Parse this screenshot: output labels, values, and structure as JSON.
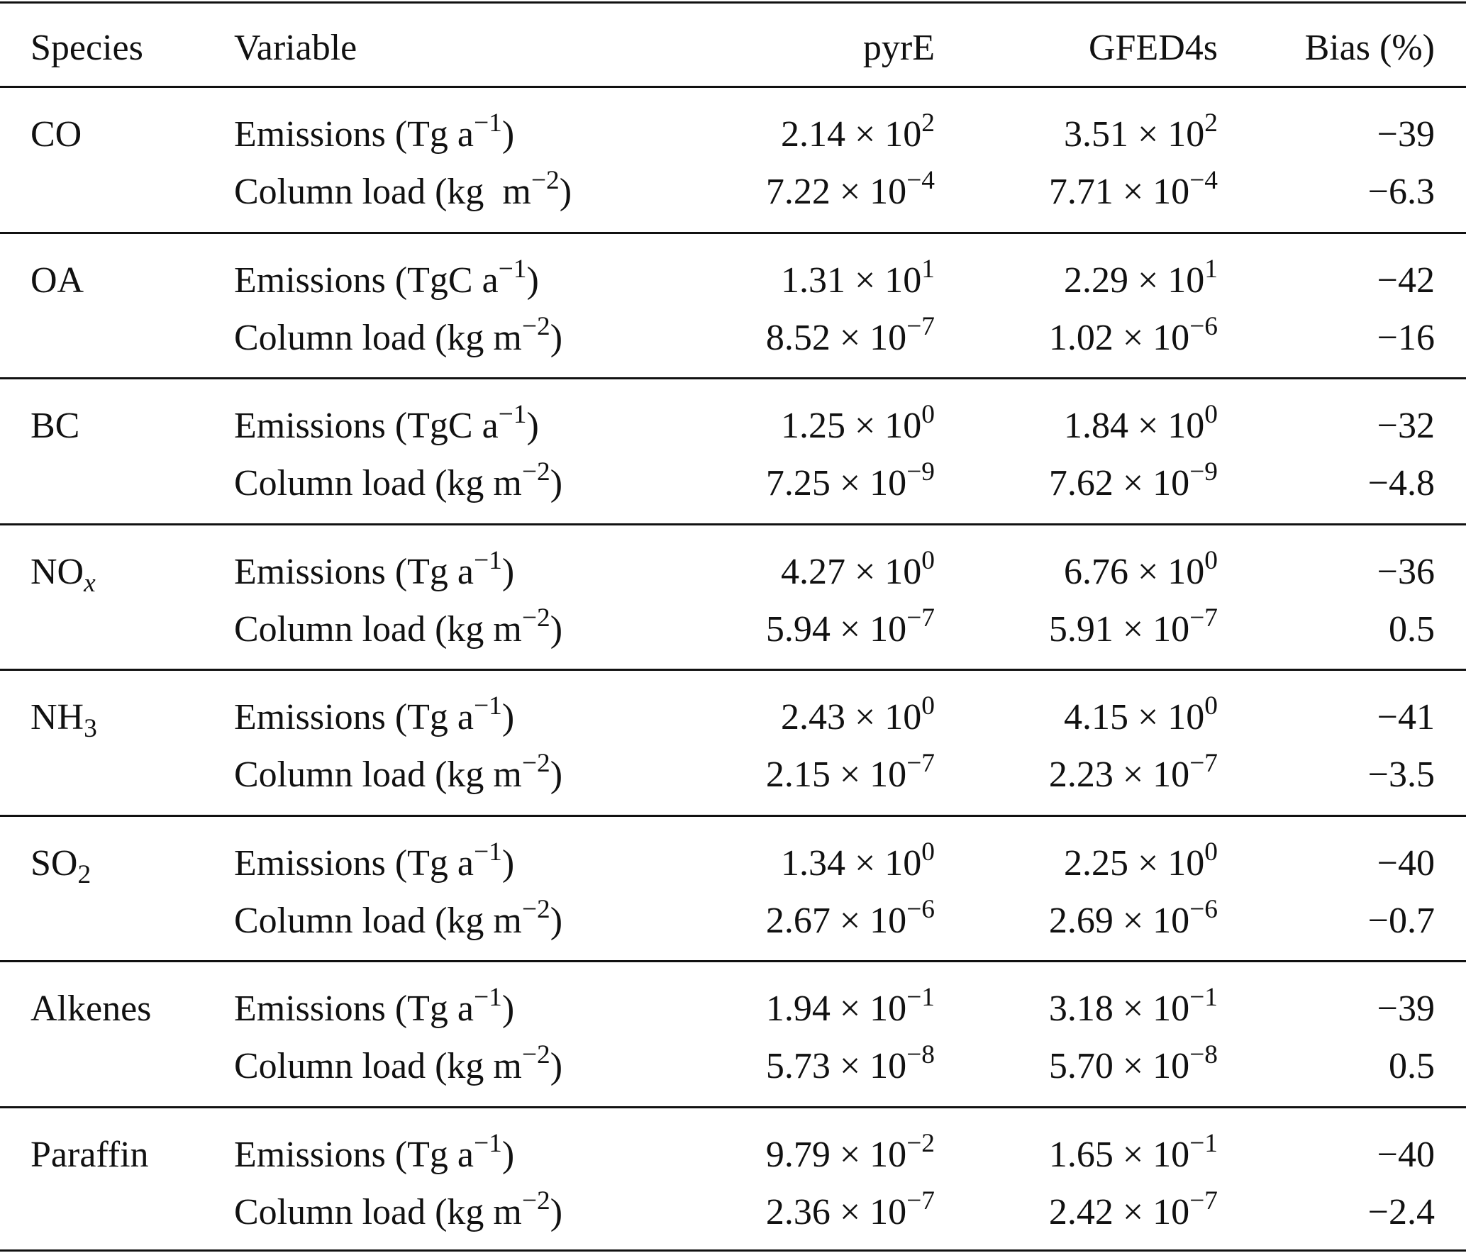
{
  "header": [
    "Species",
    "Variable",
    "pyrE",
    "GFED4s",
    "Bias (%)"
  ],
  "groups": [
    {
      "species": [
        {
          "text": "CO"
        }
      ],
      "rows": [
        {
          "variable": [
            {
              "text": "Emissions (Tg a"
            },
            {
              "sup": "−1"
            },
            {
              "text": ")"
            }
          ],
          "pyre": [
            {
              "text": "2.14 × 10"
            },
            {
              "sup": "2"
            }
          ],
          "gfed": [
            {
              "text": "3.51 × 10"
            },
            {
              "sup": "2"
            }
          ],
          "bias": "−39"
        },
        {
          "variable": [
            {
              "text": "Column load (kg  m"
            },
            {
              "sup": "−2"
            },
            {
              "text": ")"
            }
          ],
          "pyre": [
            {
              "text": "7.22 × 10"
            },
            {
              "sup": "−4"
            }
          ],
          "gfed": [
            {
              "text": "7.71 × 10"
            },
            {
              "sup": "−4"
            }
          ],
          "bias": "−6.3"
        }
      ]
    },
    {
      "species": [
        {
          "text": "OA"
        }
      ],
      "rows": [
        {
          "variable": [
            {
              "text": "Emissions (TgC a"
            },
            {
              "sup": "−1"
            },
            {
              "text": ")"
            }
          ],
          "pyre": [
            {
              "text": "1.31 × 10"
            },
            {
              "sup": "1"
            }
          ],
          "gfed": [
            {
              "text": "2.29 × 10"
            },
            {
              "sup": "1"
            }
          ],
          "bias": "−42"
        },
        {
          "variable": [
            {
              "text": "Column load (kg m"
            },
            {
              "sup": "−2"
            },
            {
              "text": ")"
            }
          ],
          "pyre": [
            {
              "text": "8.52 × 10"
            },
            {
              "sup": "−7"
            }
          ],
          "gfed": [
            {
              "text": "1.02 × 10"
            },
            {
              "sup": "−6"
            }
          ],
          "bias": "−16"
        }
      ]
    },
    {
      "species": [
        {
          "text": "BC"
        }
      ],
      "rows": [
        {
          "variable": [
            {
              "text": "Emissions (TgC a"
            },
            {
              "sup": "−1"
            },
            {
              "text": ")"
            }
          ],
          "pyre": [
            {
              "text": "1.25 × 10"
            },
            {
              "sup": "0"
            }
          ],
          "gfed": [
            {
              "text": "1.84 × 10"
            },
            {
              "sup": "0"
            }
          ],
          "bias": "−32"
        },
        {
          "variable": [
            {
              "text": "Column load (kg m"
            },
            {
              "sup": "−2"
            },
            {
              "text": ")"
            }
          ],
          "pyre": [
            {
              "text": "7.25 × 10"
            },
            {
              "sup": "−9"
            }
          ],
          "gfed": [
            {
              "text": "7.62 × 10"
            },
            {
              "sup": "−9"
            }
          ],
          "bias": "−4.8"
        }
      ]
    },
    {
      "species": [
        {
          "text": "NO"
        },
        {
          "sub": "x"
        }
      ],
      "rows": [
        {
          "variable": [
            {
              "text": "Emissions (Tg a"
            },
            {
              "sup": "−1"
            },
            {
              "text": ")"
            }
          ],
          "pyre": [
            {
              "text": "4.27 × 10"
            },
            {
              "sup": "0"
            }
          ],
          "gfed": [
            {
              "text": "6.76 × 10"
            },
            {
              "sup": "0"
            }
          ],
          "bias": "−36"
        },
        {
          "variable": [
            {
              "text": "Column load (kg m"
            },
            {
              "sup": "−2"
            },
            {
              "text": ")"
            }
          ],
          "pyre": [
            {
              "text": "5.94 × 10"
            },
            {
              "sup": "−7"
            }
          ],
          "gfed": [
            {
              "text": "5.91 × 10"
            },
            {
              "sup": "−7"
            }
          ],
          "bias": "0.5"
        }
      ]
    },
    {
      "species": [
        {
          "text": "NH"
        },
        {
          "sub": "3"
        }
      ],
      "rows": [
        {
          "variable": [
            {
              "text": "Emissions (Tg a"
            },
            {
              "sup": "−1"
            },
            {
              "text": ")"
            }
          ],
          "pyre": [
            {
              "text": "2.43 × 10"
            },
            {
              "sup": "0"
            }
          ],
          "gfed": [
            {
              "text": "4.15 × 10"
            },
            {
              "sup": "0"
            }
          ],
          "bias": "−41"
        },
        {
          "variable": [
            {
              "text": "Column load (kg m"
            },
            {
              "sup": "−2"
            },
            {
              "text": ")"
            }
          ],
          "pyre": [
            {
              "text": "2.15 × 10"
            },
            {
              "sup": "−7"
            }
          ],
          "gfed": [
            {
              "text": "2.23 × 10"
            },
            {
              "sup": "−7"
            }
          ],
          "bias": "−3.5"
        }
      ]
    },
    {
      "species": [
        {
          "text": "SO"
        },
        {
          "sub": "2"
        }
      ],
      "rows": [
        {
          "variable": [
            {
              "text": "Emissions (Tg a"
            },
            {
              "sup": "−1"
            },
            {
              "text": ")"
            }
          ],
          "pyre": [
            {
              "text": "1.34 × 10"
            },
            {
              "sup": "0"
            }
          ],
          "gfed": [
            {
              "text": "2.25 × 10"
            },
            {
              "sup": "0"
            }
          ],
          "bias": "−40"
        },
        {
          "variable": [
            {
              "text": "Column load (kg m"
            },
            {
              "sup": "−2"
            },
            {
              "text": ")"
            }
          ],
          "pyre": [
            {
              "text": "2.67 × 10"
            },
            {
              "sup": "−6"
            }
          ],
          "gfed": [
            {
              "text": "2.69 × 10"
            },
            {
              "sup": "−6"
            }
          ],
          "bias": "−0.7"
        }
      ]
    },
    {
      "species": [
        {
          "text": "Alkenes"
        }
      ],
      "rows": [
        {
          "variable": [
            {
              "text": "Emissions (Tg a"
            },
            {
              "sup": "−1"
            },
            {
              "text": ")"
            }
          ],
          "pyre": [
            {
              "text": "1.94 × 10"
            },
            {
              "sup": "−1"
            }
          ],
          "gfed": [
            {
              "text": "3.18 × 10"
            },
            {
              "sup": "−1"
            }
          ],
          "bias": "−39"
        },
        {
          "variable": [
            {
              "text": "Column load (kg m"
            },
            {
              "sup": "−2"
            },
            {
              "text": ")"
            }
          ],
          "pyre": [
            {
              "text": "5.73 × 10"
            },
            {
              "sup": "−8"
            }
          ],
          "gfed": [
            {
              "text": "5.70 × 10"
            },
            {
              "sup": "−8"
            }
          ],
          "bias": "0.5"
        }
      ]
    },
    {
      "species": [
        {
          "text": "Paraffin"
        }
      ],
      "rows": [
        {
          "variable": [
            {
              "text": "Emissions (Tg a"
            },
            {
              "sup": "−1"
            },
            {
              "text": ")"
            }
          ],
          "pyre": [
            {
              "text": "9.79 × 10"
            },
            {
              "sup": "−2"
            }
          ],
          "gfed": [
            {
              "text": "1.65 × 10"
            },
            {
              "sup": "−1"
            }
          ],
          "bias": "−40"
        },
        {
          "variable": [
            {
              "text": "Column load (kg m"
            },
            {
              "sup": "−2"
            },
            {
              "text": ")"
            }
          ],
          "pyre": [
            {
              "text": "2.36 × 10"
            },
            {
              "sup": "−7"
            }
          ],
          "gfed": [
            {
              "text": "2.42 × 10"
            },
            {
              "sup": "−7"
            }
          ],
          "bias": "−2.4"
        }
      ]
    }
  ]
}
